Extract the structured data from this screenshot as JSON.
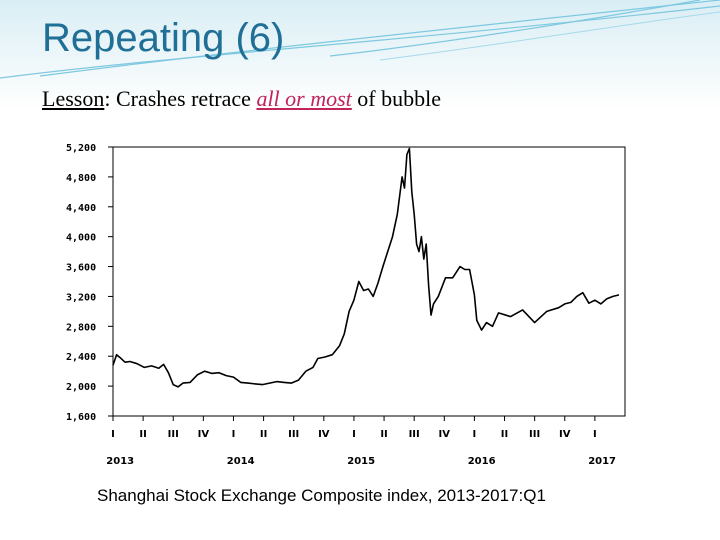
{
  "slide": {
    "title": "Repeating (6)",
    "lesson_label": "Lesson",
    "lesson_sep": ": ",
    "lesson_text_1": "Crashes retrace ",
    "lesson_emphasis": "all or most",
    "lesson_text_2": " of bubble",
    "caption": "Shanghai Stock Exchange Composite index, 2013-2017:Q1",
    "colors": {
      "title": "#1f6f96",
      "emphasis": "#c0245a",
      "decor": "#7ec8e0"
    }
  },
  "chart_data": {
    "type": "line",
    "title": "",
    "xlabel": "",
    "ylabel": "",
    "ylim": [
      1600,
      5200
    ],
    "y_ticks": [
      1600,
      2000,
      2400,
      2800,
      3200,
      3600,
      4000,
      4400,
      4800,
      5200
    ],
    "y_tick_labels": [
      "1,600",
      "2,000",
      "2,400",
      "2,800",
      "3,200",
      "3,600",
      "4,000",
      "4,400",
      "4,800",
      "5,200"
    ],
    "xlim": [
      2013.0,
      2017.25
    ],
    "quarter_labels": [
      "I",
      "II",
      "III",
      "IV",
      "I",
      "II",
      "III",
      "IV",
      "I",
      "II",
      "III",
      "IV",
      "I",
      "II",
      "III",
      "IV",
      "I"
    ],
    "year_labels": [
      "2013",
      "2014",
      "2015",
      "2016",
      "2017"
    ],
    "grid": false,
    "legend": "none",
    "series": [
      {
        "color": "#000000",
        "x": [
          2013.0,
          2013.03,
          2013.06,
          2013.1,
          2013.14,
          2013.2,
          2013.26,
          2013.32,
          2013.38,
          2013.42,
          2013.46,
          2013.5,
          2013.54,
          2013.58,
          2013.64,
          2013.7,
          2013.76,
          2013.82,
          2013.88,
          2013.94,
          2014.0,
          2014.06,
          2014.12,
          2014.18,
          2014.24,
          2014.3,
          2014.36,
          2014.42,
          2014.48,
          2014.54,
          2014.6,
          2014.66,
          2014.7,
          2014.76,
          2014.82,
          2014.88,
          2014.92,
          2014.96,
          2015.0,
          2015.04,
          2015.08,
          2015.12,
          2015.16,
          2015.2,
          2015.24,
          2015.28,
          2015.32,
          2015.36,
          2015.4,
          2015.42,
          2015.44,
          2015.46,
          2015.48,
          2015.5,
          2015.52,
          2015.54,
          2015.56,
          2015.58,
          2015.6,
          2015.62,
          2015.64,
          2015.66,
          2015.7,
          2015.76,
          2015.82,
          2015.88,
          2015.92,
          2015.96,
          2016.0,
          2016.02,
          2016.06,
          2016.1,
          2016.15,
          2016.2,
          2016.3,
          2016.4,
          2016.5,
          2016.6,
          2016.7,
          2016.75,
          2016.8,
          2016.85,
          2016.9,
          2016.95,
          2017.0,
          2017.05,
          2017.1,
          2017.15,
          2017.2
        ],
        "y": [
          2280,
          2420,
          2380,
          2320,
          2330,
          2300,
          2250,
          2270,
          2240,
          2290,
          2180,
          2020,
          1990,
          2040,
          2050,
          2150,
          2200,
          2170,
          2180,
          2140,
          2120,
          2050,
          2040,
          2030,
          2020,
          2040,
          2060,
          2050,
          2040,
          2080,
          2200,
          2250,
          2370,
          2390,
          2420,
          2540,
          2700,
          3000,
          3150,
          3400,
          3280,
          3300,
          3200,
          3380,
          3600,
          3800,
          4000,
          4300,
          4800,
          4650,
          5100,
          5180,
          4600,
          4300,
          3900,
          3800,
          4000,
          3700,
          3900,
          3350,
          2950,
          3100,
          3200,
          3450,
          3450,
          3600,
          3560,
          3560,
          3220,
          2880,
          2750,
          2850,
          2800,
          2980,
          2930,
          3020,
          2850,
          3000,
          3050,
          3100,
          3120,
          3200,
          3250,
          3110,
          3150,
          3100,
          3170,
          3200,
          3220
        ]
      }
    ]
  }
}
